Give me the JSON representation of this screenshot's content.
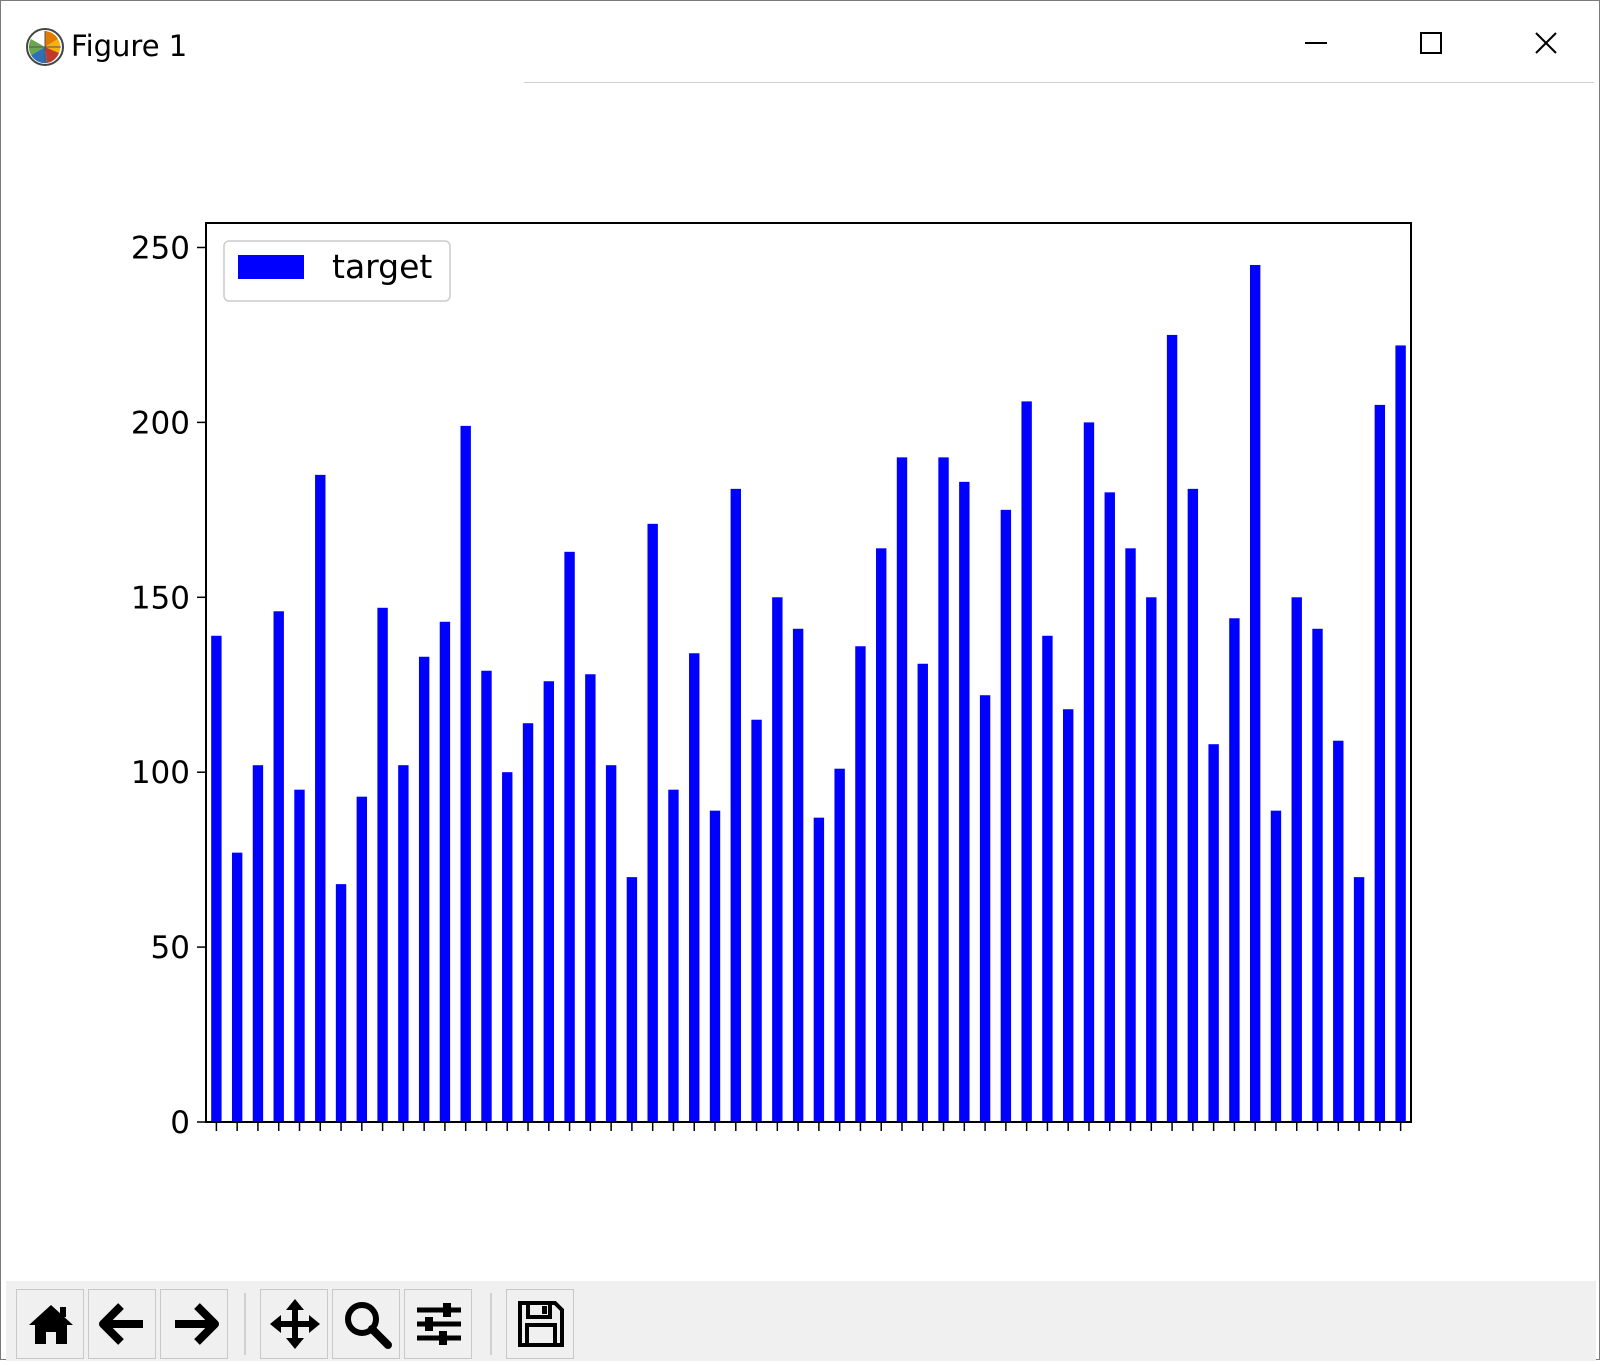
{
  "window": {
    "title": "Figure 1",
    "controls": [
      "minimize",
      "maximize",
      "close"
    ]
  },
  "toolbar": {
    "buttons": [
      {
        "name": "home-button",
        "icon": "home-icon"
      },
      {
        "name": "back-button",
        "icon": "arrow-left-icon"
      },
      {
        "name": "forward-button",
        "icon": "arrow-right-icon"
      },
      {
        "name": "pan-button",
        "icon": "move-icon"
      },
      {
        "name": "zoom-button",
        "icon": "magnifier-icon"
      },
      {
        "name": "configure-subplots-button",
        "icon": "sliders-icon"
      },
      {
        "name": "save-button",
        "icon": "floppy-disk-icon"
      }
    ]
  },
  "chart_data": {
    "type": "bar",
    "title": "",
    "xlabel": "",
    "ylabel": "",
    "ylim": [
      0,
      257
    ],
    "yticks": [
      0,
      50,
      100,
      150,
      200,
      250
    ],
    "grid": false,
    "legend": {
      "position": "top-left",
      "entries": [
        "target"
      ]
    },
    "bar_color": "#0000ff",
    "series": [
      {
        "name": "target",
        "values": [
          139,
          77,
          102,
          146,
          95,
          185,
          68,
          93,
          147,
          102,
          133,
          143,
          199,
          129,
          100,
          114,
          126,
          163,
          128,
          102,
          70,
          171,
          95,
          134,
          89,
          181,
          115,
          150,
          141,
          87,
          101,
          136,
          164,
          190,
          131,
          190,
          183,
          122,
          175,
          206,
          139,
          118,
          200,
          180,
          164,
          150,
          225,
          181,
          108,
          144,
          245,
          89,
          150,
          141,
          109,
          70,
          205,
          222
        ]
      }
    ]
  }
}
